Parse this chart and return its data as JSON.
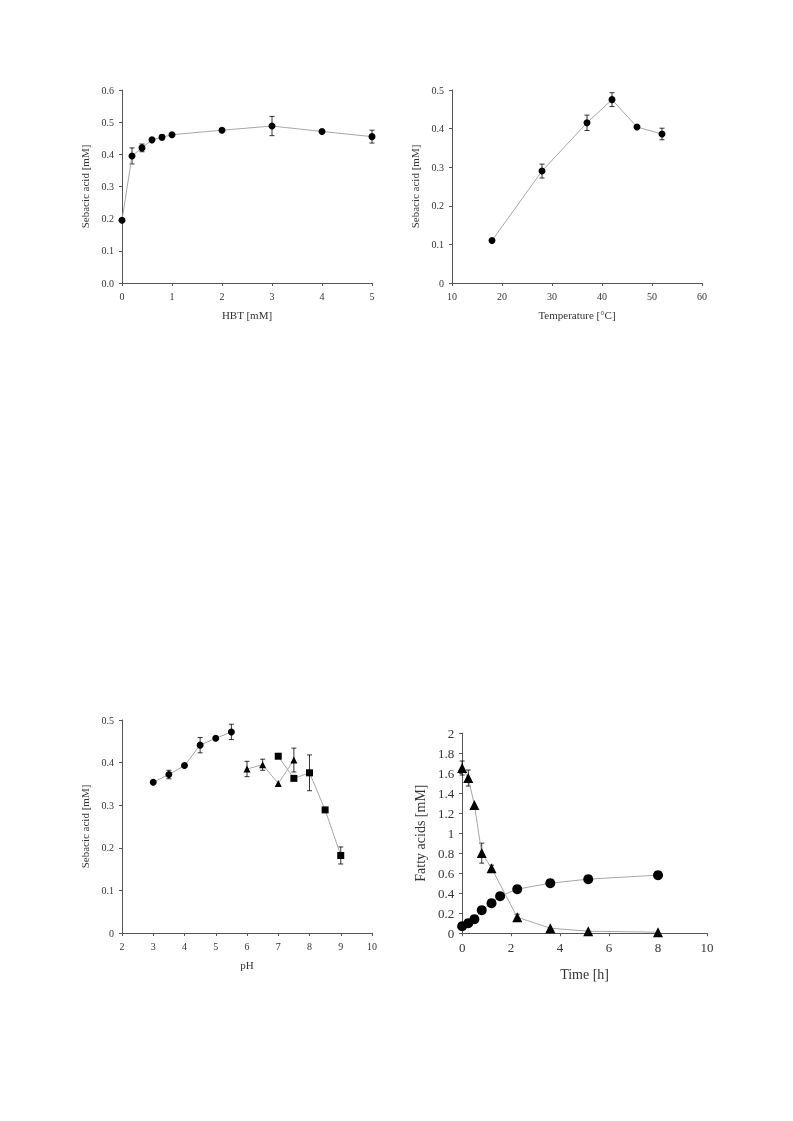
{
  "chart_data": [
    {
      "type": "line",
      "xlabel": "HBT [mM]",
      "ylabel": "Sebacic acid [mM]",
      "xlim": [
        0,
        5
      ],
      "xticks": [
        0,
        1,
        2,
        3,
        4,
        5
      ],
      "ylim": [
        0,
        0.6
      ],
      "yticks": [
        {
          "value": 0,
          "label": "0.0"
        },
        0.1,
        0.2,
        0.3,
        0.4,
        0.5,
        0.6
      ],
      "series": [
        {
          "color": "#000000",
          "marker": "circle",
          "x": [
            0,
            0.2,
            0.4,
            0.6,
            0.8,
            1,
            2,
            3,
            4,
            5
          ],
          "values": [
            0.195,
            0.395,
            0.42,
            0.445,
            0.453,
            0.461,
            0.475,
            0.488,
            0.471,
            0.455
          ],
          "errors": [
            null,
            0.025,
            0.012,
            null,
            0.008,
            null,
            null,
            0.03,
            null,
            0.02
          ]
        }
      ]
    },
    {
      "type": "line",
      "xlabel": "Temperature [°C]",
      "ylabel": "Sebacic acid [mM]",
      "xlim": [
        10,
        60
      ],
      "xticks": [
        10,
        20,
        30,
        40,
        50,
        60
      ],
      "ylim": [
        0,
        0.5
      ],
      "yticks": [
        0,
        0.1,
        0.2,
        0.3,
        0.4,
        0.5
      ],
      "series": [
        {
          "color": "#000000",
          "marker": "circle",
          "x": [
            18,
            28,
            37,
            42,
            47,
            52
          ],
          "values": [
            0.11,
            0.29,
            0.415,
            0.475,
            0.404,
            0.386
          ],
          "errors": [
            null,
            0.018,
            0.02,
            0.018,
            null,
            0.015
          ]
        }
      ]
    },
    {
      "type": "line",
      "xlabel": "pH",
      "ylabel": "Sebacic acid [mM]",
      "xlim": [
        2,
        10
      ],
      "xticks": [
        2,
        3,
        4,
        5,
        6,
        7,
        8,
        9,
        10
      ],
      "ylim": [
        0,
        0.5
      ],
      "yticks": [
        0,
        0.1,
        0.2,
        0.3,
        0.4,
        0.5
      ],
      "series": [
        {
          "color": "#000000",
          "marker": "circle",
          "x": [
            3,
            3.5,
            4,
            4.5,
            5,
            5.5
          ],
          "values": [
            0.354,
            0.372,
            0.393,
            0.441,
            0.457,
            0.472
          ],
          "errors": [
            null,
            0.01,
            null,
            0.018,
            null,
            0.018
          ]
        },
        {
          "color": "#000000",
          "marker": "triangle",
          "x": [
            6,
            6.5,
            7,
            7.5
          ],
          "values": [
            0.385,
            0.395,
            0.351,
            0.406
          ],
          "errors": [
            0.018,
            0.013,
            null,
            0.028
          ]
        },
        {
          "color": "#000000",
          "marker": "square",
          "x": [
            7,
            7.5,
            8,
            8.5,
            9
          ],
          "values": [
            0.415,
            0.363,
            0.376,
            0.289,
            0.182
          ],
          "errors": [
            null,
            null,
            0.042,
            null,
            0.02
          ]
        }
      ]
    },
    {
      "type": "line",
      "xlabel": "Time [h]",
      "ylabel": "Fatty acids [mM]",
      "xlim": [
        0,
        10
      ],
      "xticks": [
        0,
        2,
        4,
        6,
        8,
        10
      ],
      "ylim": [
        0,
        2
      ],
      "yticks": [
        0,
        0.2,
        0.4,
        0.6,
        0.8,
        1,
        1.2,
        1.4,
        1.6,
        1.8,
        2
      ],
      "series": [
        {
          "color": "#000000",
          "marker": "triangle",
          "x": [
            0,
            0.25,
            0.5,
            0.8,
            1.2,
            2.25,
            3.6,
            5.15,
            8
          ],
          "values": [
            1.65,
            1.55,
            1.28,
            0.8,
            0.65,
            0.16,
            0.05,
            0.02,
            0.01
          ],
          "errors": [
            0.07,
            0.08,
            null,
            0.1,
            0.03,
            0.03,
            null,
            null,
            null
          ]
        },
        {
          "color": "#000000",
          "marker": "circle",
          "x": [
            0,
            0.25,
            0.5,
            0.8,
            1.2,
            1.55,
            2.25,
            3.6,
            5.15,
            8
          ],
          "values": [
            0.07,
            0.1,
            0.14,
            0.23,
            0.3,
            0.37,
            0.44,
            0.5,
            0.54,
            0.58
          ]
        }
      ]
    }
  ]
}
